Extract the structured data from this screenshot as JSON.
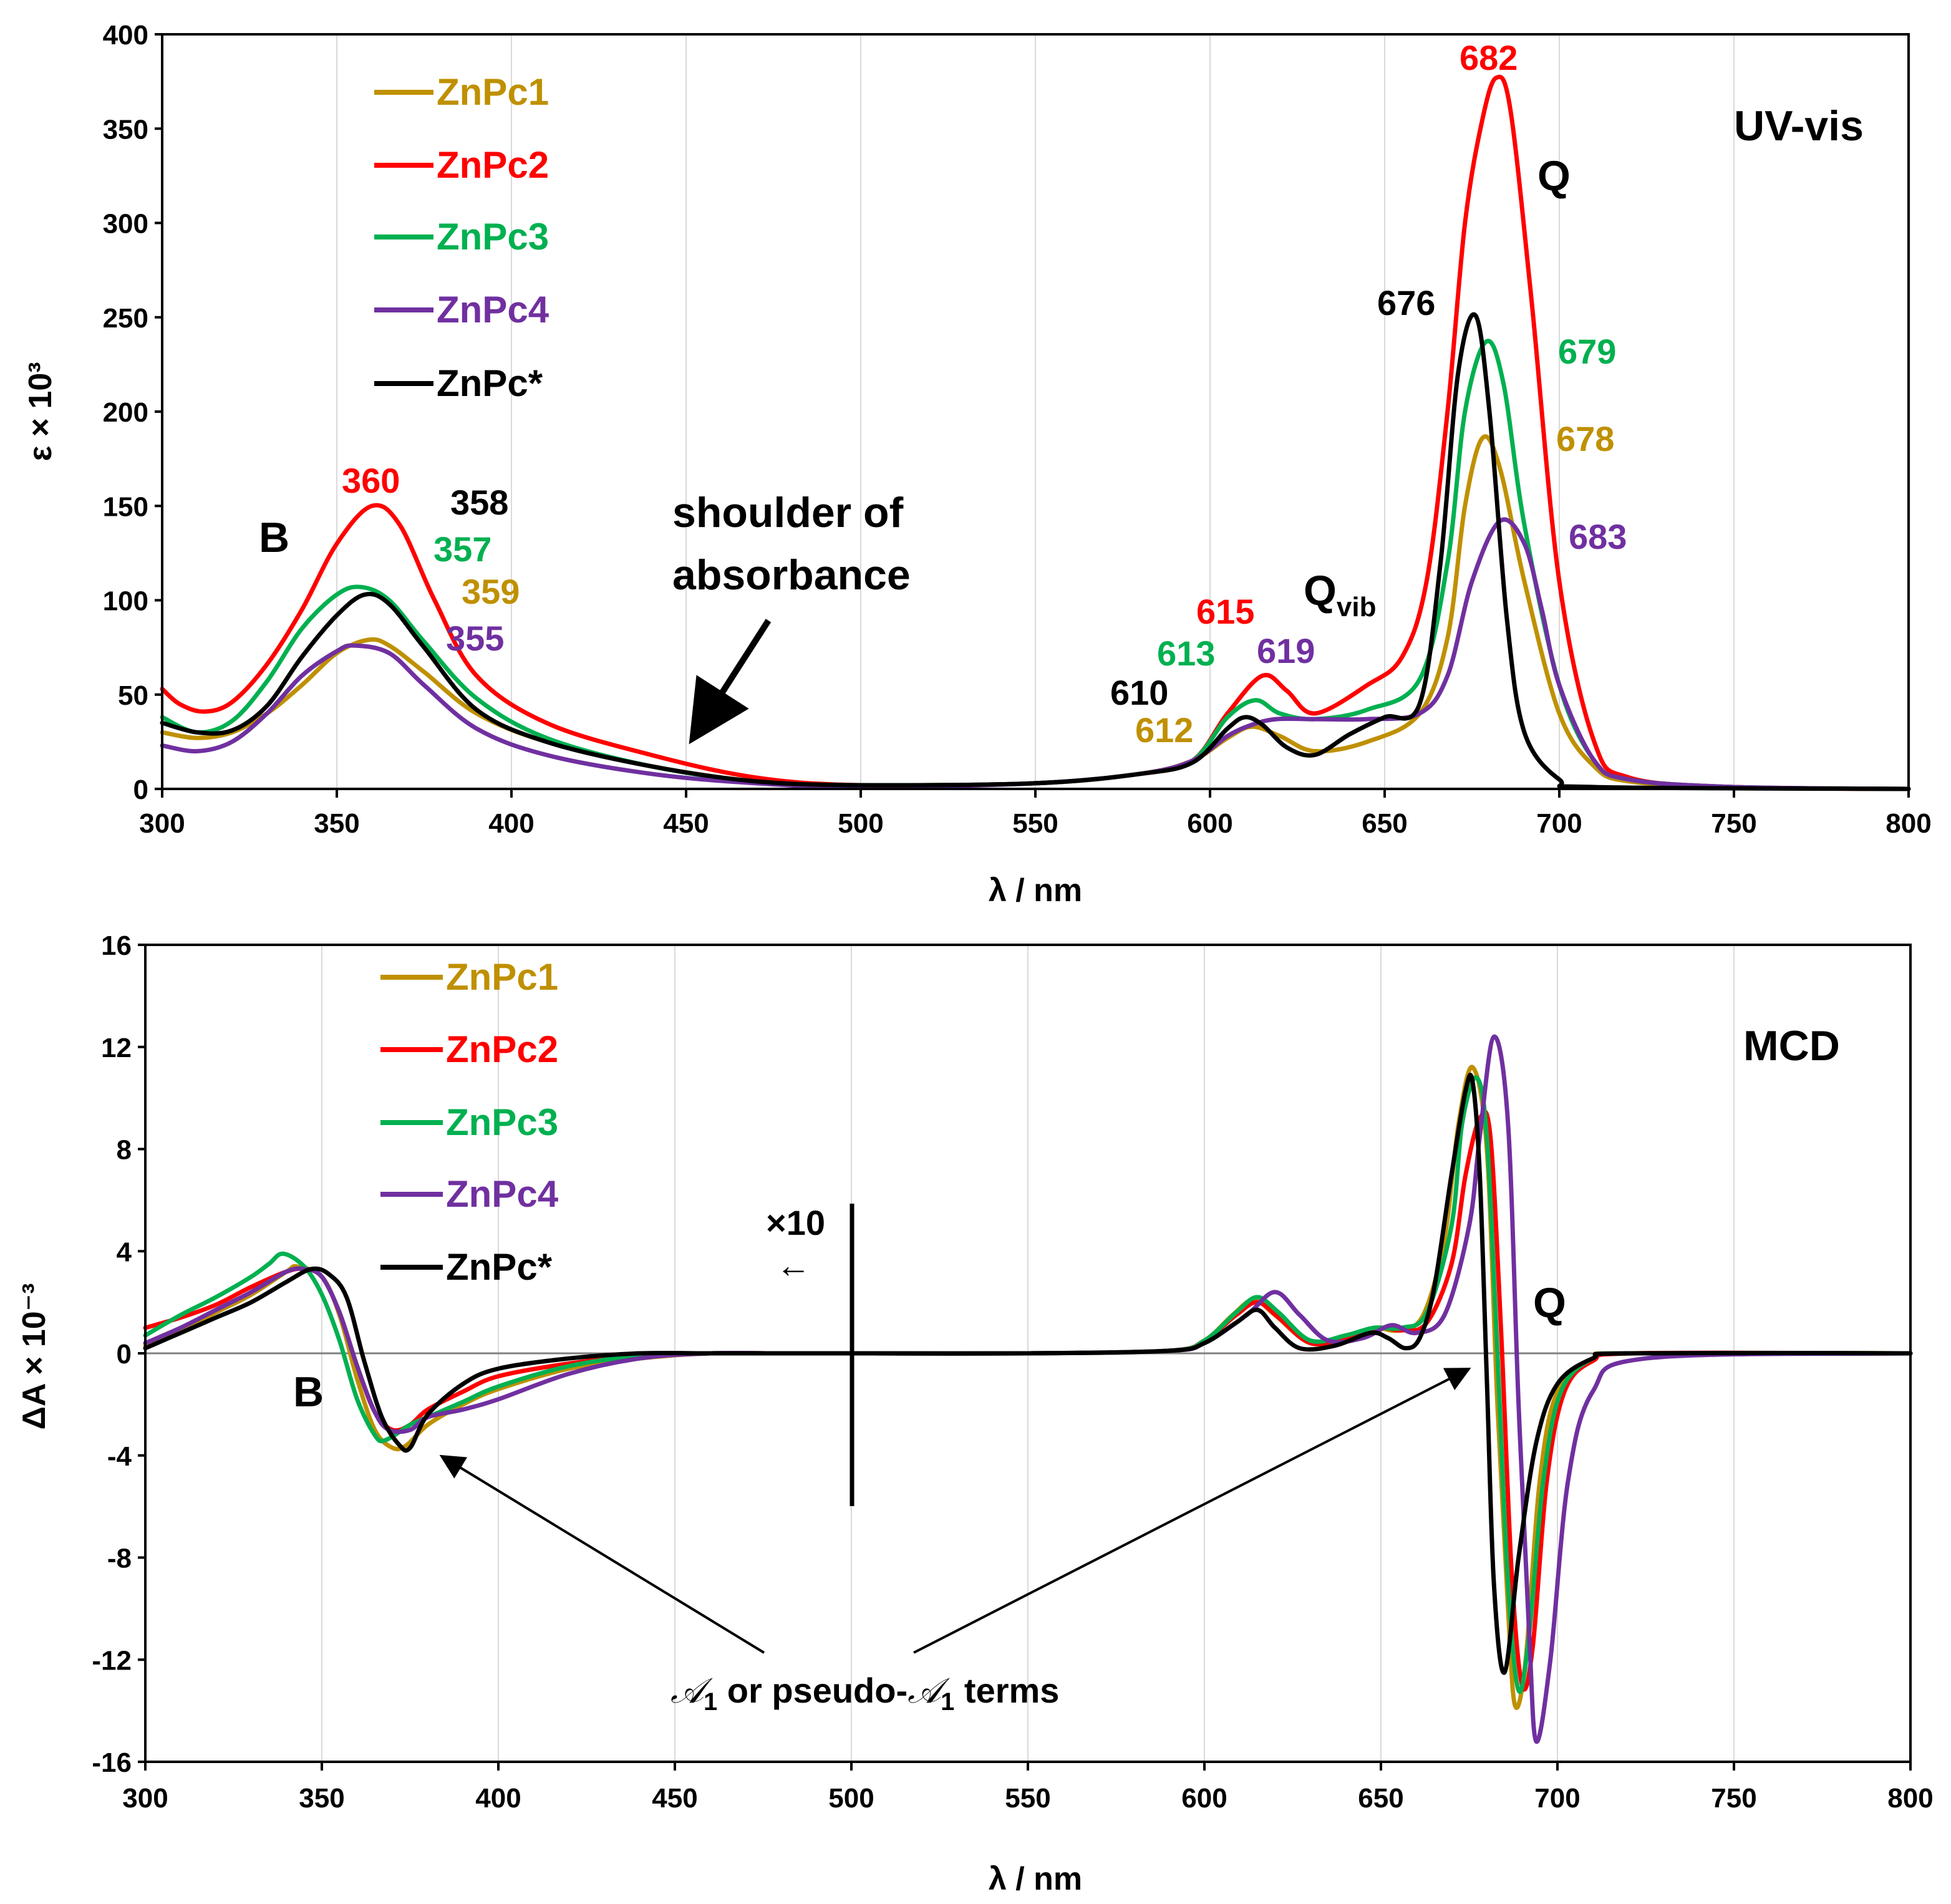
{
  "colors": {
    "ZnPc1": "#BF9000",
    "ZnPc2": "#FF0000",
    "ZnPc3": "#00B050",
    "ZnPc4": "#7030A0",
    "ZnPc*": "#000000"
  },
  "chart_data": [
    {
      "type": "line",
      "title": "UV-vis",
      "xlabel": "λ / nm",
      "ylabel": "ε × 10³",
      "xlim": [
        300,
        800
      ],
      "ylim": [
        0,
        400
      ],
      "xticks": [
        300,
        350,
        400,
        450,
        500,
        550,
        600,
        650,
        700,
        750,
        800
      ],
      "yticks": [
        0,
        50,
        100,
        150,
        200,
        250,
        300,
        350,
        400
      ],
      "grid": "vertical",
      "legend": "top-left",
      "series": [
        {
          "name": "ZnPc1",
          "x": [
            300,
            310,
            320,
            330,
            340,
            350,
            359,
            365,
            375,
            390,
            410,
            440,
            470,
            500,
            550,
            580,
            595,
            605,
            612,
            620,
            630,
            645,
            660,
            668,
            673,
            678,
            683,
            690,
            700,
            710,
            720,
            750,
            800
          ],
          "y": [
            30,
            27,
            30,
            40,
            55,
            72,
            79,
            76,
            62,
            40,
            25,
            12,
            4,
            2,
            3,
            8,
            15,
            27,
            33,
            28,
            20,
            25,
            40,
            80,
            150,
            186,
            170,
            110,
            40,
            12,
            4,
            1,
            0
          ]
        },
        {
          "name": "ZnPc2",
          "x": [
            300,
            305,
            312,
            320,
            330,
            340,
            350,
            360,
            368,
            378,
            390,
            410,
            440,
            470,
            500,
            550,
            580,
            595,
            605,
            615,
            622,
            630,
            645,
            655,
            662,
            668,
            673,
            678,
            682,
            686,
            692,
            700,
            710,
            720,
            750,
            800
          ],
          "y": [
            53,
            45,
            41,
            46,
            66,
            95,
            130,
            150,
            140,
            100,
            60,
            35,
            18,
            6,
            2,
            3,
            8,
            15,
            40,
            60,
            52,
            40,
            55,
            70,
            110,
            200,
            300,
            355,
            377,
            360,
            260,
            110,
            25,
            6,
            1,
            0
          ]
        },
        {
          "name": "ZnPc3",
          "x": [
            300,
            310,
            320,
            330,
            340,
            350,
            357,
            365,
            375,
            390,
            410,
            440,
            470,
            500,
            550,
            580,
            595,
            605,
            613,
            620,
            630,
            645,
            660,
            668,
            673,
            679,
            684,
            690,
            700,
            710,
            720,
            750,
            800
          ],
          "y": [
            38,
            30,
            36,
            57,
            85,
            103,
            107,
            100,
            78,
            48,
            27,
            12,
            4,
            2,
            3,
            8,
            15,
            38,
            47,
            40,
            37,
            42,
            58,
            120,
            200,
            237,
            215,
            140,
            55,
            15,
            5,
            1,
            0
          ]
        },
        {
          "name": "ZnPc4",
          "x": [
            300,
            310,
            320,
            330,
            340,
            350,
            355,
            365,
            375,
            390,
            410,
            440,
            470,
            500,
            550,
            580,
            595,
            605,
            612,
            619,
            630,
            645,
            660,
            668,
            675,
            683,
            690,
            695,
            700,
            710,
            720,
            750,
            800
          ],
          "y": [
            23,
            20,
            25,
            40,
            60,
            73,
            76,
            72,
            55,
            32,
            18,
            8,
            3,
            1,
            3,
            8,
            15,
            28,
            34,
            37,
            37,
            37,
            40,
            60,
            110,
            142,
            130,
            95,
            55,
            15,
            5,
            1,
            0
          ]
        },
        {
          "name": "ZnPc*",
          "x": [
            300,
            310,
            320,
            330,
            340,
            350,
            358,
            365,
            375,
            390,
            410,
            440,
            470,
            500,
            550,
            580,
            595,
            605,
            610,
            615,
            622,
            630,
            640,
            650,
            660,
            666,
            671,
            676,
            680,
            685,
            690,
            700,
            710,
            800
          ],
          "y": [
            35,
            30,
            31,
            44,
            70,
            92,
            103,
            98,
            75,
            42,
            25,
            12,
            4,
            2,
            3,
            8,
            14,
            32,
            38,
            34,
            22,
            18,
            29,
            38,
            45,
            120,
            220,
            251,
            200,
            90,
            30,
            5,
            1,
            0
          ]
        }
      ],
      "peak_labels": {
        "B": [
          {
            "series": "ZnPc2",
            "text": "360"
          },
          {
            "series": "ZnPc*",
            "text": "358"
          },
          {
            "series": "ZnPc3",
            "text": "357"
          },
          {
            "series": "ZnPc1",
            "text": "359"
          },
          {
            "series": "ZnPc4",
            "text": "355"
          }
        ],
        "Qvib": [
          {
            "series": "ZnPc2",
            "text": "615"
          },
          {
            "series": "ZnPc3",
            "text": "613"
          },
          {
            "series": "ZnPc4",
            "text": "619"
          },
          {
            "series": "ZnPc*",
            "text": "610"
          },
          {
            "series": "ZnPc1",
            "text": "612"
          }
        ],
        "Q": [
          {
            "series": "ZnPc2",
            "text": "682"
          },
          {
            "series": "ZnPc*",
            "text": "676"
          },
          {
            "series": "ZnPc3",
            "text": "679"
          },
          {
            "series": "ZnPc1",
            "text": "678"
          },
          {
            "series": "ZnPc4",
            "text": "683"
          }
        ]
      },
      "annotations": {
        "B": "B",
        "Q": "Q",
        "Qvib_main": "Q",
        "Qvib_sub": "vib",
        "shoulder_line1": "shoulder of",
        "shoulder_line2": "absorbance"
      }
    },
    {
      "type": "line",
      "title": "MCD",
      "xlabel": "λ / nm",
      "ylabel": "ΔA × 10⁻³",
      "xlim": [
        300,
        800
      ],
      "ylim": [
        -16,
        16
      ],
      "xticks": [
        300,
        350,
        400,
        450,
        500,
        550,
        600,
        650,
        700,
        750,
        800
      ],
      "yticks": [
        -16,
        -12,
        -8,
        -4,
        0,
        4,
        8,
        12,
        16
      ],
      "grid": "vertical",
      "legend": "top-left",
      "series": [
        {
          "name": "ZnPc1",
          "x": [
            300,
            310,
            320,
            330,
            340,
            343,
            350,
            355,
            360,
            365,
            370,
            374,
            380,
            390,
            400,
            420,
            440,
            460,
            480,
            500,
            550,
            590,
            600,
            608,
            614,
            620,
            630,
            640,
            648,
            655,
            662,
            668,
            672,
            676,
            680,
            683,
            686,
            688,
            691,
            695,
            700,
            710,
            720,
            800
          ],
          "y": [
            0.3,
            0.9,
            1.6,
            2.3,
            3.2,
            3.4,
            3.0,
            1.5,
            -1.0,
            -3.0,
            -3.7,
            -3.6,
            -2.8,
            -2.0,
            -1.4,
            -0.6,
            -0.2,
            0,
            0,
            0,
            0,
            0.1,
            0.5,
            1.5,
            2.1,
            1.5,
            0.4,
            0.6,
            1.0,
            0.9,
            1.5,
            4.5,
            9.0,
            11.2,
            8.0,
            -2.0,
            -10.0,
            -13.8,
            -12.0,
            -5.0,
            -1.5,
            -0.2,
            0,
            0
          ]
        },
        {
          "name": "ZnPc2",
          "x": [
            300,
            310,
            320,
            330,
            340,
            345,
            350,
            355,
            360,
            365,
            370,
            375,
            380,
            390,
            400,
            420,
            440,
            460,
            480,
            500,
            550,
            590,
            600,
            609,
            615,
            621,
            630,
            640,
            649,
            656,
            663,
            670,
            674,
            678,
            681,
            684,
            687,
            690,
            693,
            697,
            702,
            710,
            722,
            800
          ],
          "y": [
            1.0,
            1.4,
            1.9,
            2.6,
            3.2,
            3.3,
            3.0,
            1.6,
            -0.5,
            -2.3,
            -3.0,
            -2.8,
            -2.2,
            -1.5,
            -0.9,
            -0.4,
            -0.1,
            0,
            0,
            0,
            0,
            0.1,
            0.5,
            1.5,
            2.0,
            1.4,
            0.4,
            0.6,
            1.0,
            0.9,
            1.2,
            3.5,
            7.0,
            9.2,
            8.5,
            1.0,
            -8.5,
            -13.0,
            -11.5,
            -5.0,
            -1.5,
            -0.3,
            0,
            0
          ]
        },
        {
          "name": "ZnPc3",
          "x": [
            300,
            310,
            320,
            330,
            335,
            339,
            345,
            350,
            355,
            360,
            365,
            368,
            375,
            380,
            390,
            400,
            420,
            440,
            460,
            480,
            500,
            550,
            590,
            600,
            609,
            615,
            621,
            630,
            640,
            648,
            656,
            663,
            670,
            673,
            677,
            680,
            683,
            686,
            689,
            692,
            696,
            701,
            710,
            721,
            800
          ],
          "y": [
            0.7,
            1.5,
            2.2,
            3.0,
            3.5,
            3.9,
            3.4,
            2.3,
            0.5,
            -1.8,
            -3.2,
            -3.4,
            -2.8,
            -2.5,
            -1.9,
            -1.3,
            -0.5,
            -0.1,
            0,
            0,
            0,
            0,
            0.1,
            0.5,
            1.6,
            2.2,
            1.6,
            0.5,
            0.7,
            1.0,
            1.0,
            1.6,
            5.0,
            9.0,
            10.8,
            8.5,
            0,
            -9.0,
            -13.2,
            -11.0,
            -5.0,
            -1.5,
            -0.2,
            0,
            0
          ]
        },
        {
          "name": "ZnPc4",
          "x": [
            300,
            310,
            320,
            330,
            340,
            345,
            350,
            355,
            360,
            365,
            369,
            375,
            380,
            390,
            400,
            420,
            440,
            460,
            480,
            500,
            550,
            590,
            600,
            612,
            620,
            627,
            635,
            645,
            653,
            660,
            668,
            675,
            678,
            682,
            686,
            689,
            692,
            694,
            698,
            703,
            710,
            725,
            800
          ],
          "y": [
            0.4,
            1.0,
            1.7,
            2.4,
            3.2,
            3.3,
            3.0,
            1.6,
            -0.5,
            -2.3,
            -3.0,
            -3.0,
            -2.5,
            -2.2,
            -1.8,
            -0.8,
            -0.2,
            0,
            0,
            0,
            0,
            0.1,
            0.4,
            1.5,
            2.4,
            1.5,
            0.5,
            0.6,
            1.1,
            0.8,
            1.5,
            5.0,
            8.5,
            12.4,
            9.0,
            -2.0,
            -11.0,
            -15.2,
            -12.0,
            -5.0,
            -1.5,
            -0.2,
            0
          ]
        },
        {
          "name": "ZnPc*",
          "x": [
            300,
            310,
            320,
            330,
            340,
            347,
            352,
            357,
            362,
            367,
            372,
            375,
            380,
            390,
            400,
            420,
            440,
            460,
            480,
            500,
            550,
            590,
            600,
            609,
            615,
            620,
            627,
            637,
            647,
            652,
            657,
            661,
            665,
            670,
            674,
            676,
            678,
            680,
            682,
            685,
            689,
            694,
            700,
            710,
            720,
            800
          ],
          "y": [
            0.2,
            0.8,
            1.4,
            2.0,
            2.8,
            3.3,
            3.1,
            2.2,
            -0.3,
            -2.5,
            -3.6,
            -3.7,
            -2.4,
            -1.2,
            -0.6,
            -0.2,
            0,
            0,
            0,
            0,
            0,
            0.1,
            0.4,
            1.2,
            1.7,
            1.0,
            0.2,
            0.3,
            0.8,
            0.6,
            0.2,
            0.6,
            2.5,
            7.0,
            10.3,
            10.6,
            7.0,
            -1.0,
            -9.0,
            -12.5,
            -8.0,
            -3.5,
            -1.2,
            -0.2,
            0,
            0
          ]
        }
      ],
      "annotations": {
        "B": "B",
        "Q": "Q",
        "x10": "×10",
        "left_arrow": "←",
        "terms_prefix": "𝒜",
        "terms_sub1": "1",
        "terms_mid": " or pseudo-",
        "terms_prefix2": "𝒜",
        "terms_sub2": "1",
        "terms_suffix": " terms"
      }
    }
  ]
}
